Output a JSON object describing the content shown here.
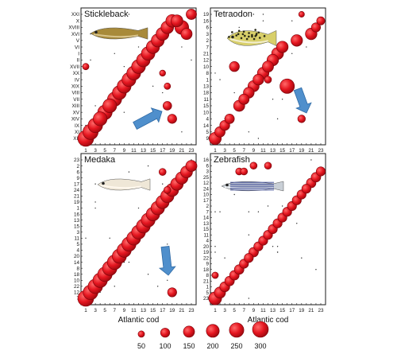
{
  "chart_data": [
    {
      "type": "scatter",
      "title": "Stickleback",
      "xlabel": "",
      "ylabel": "",
      "x_categories": [
        "1",
        "",
        "3",
        "",
        "5",
        "",
        "7",
        "",
        "9",
        "",
        "11",
        "",
        "13",
        "",
        "15",
        "",
        "17",
        "",
        "19",
        "",
        "21",
        "",
        "23"
      ],
      "y_categories_top_to_bottom": [
        "XXI",
        "X",
        "XVIII",
        "XVI",
        "V",
        "VI",
        "I",
        "II",
        "XVII",
        "XX",
        "IV",
        "XIX",
        "VIII",
        "VII",
        "XIII",
        "XV",
        "XIV",
        "IX",
        "XI",
        "XII"
      ],
      "bubbles": [
        {
          "x": 1,
          "y": "XII",
          "size": 300
        },
        {
          "x": 2,
          "y": "XI",
          "size": 280
        },
        {
          "x": 3,
          "y": "IX",
          "size": 250
        },
        {
          "x": 4,
          "y": "XIV",
          "size": 230
        },
        {
          "x": 5,
          "y": "XV",
          "size": 250
        },
        {
          "x": 6,
          "y": "XIII",
          "size": 230
        },
        {
          "x": 7,
          "y": "VII",
          "size": 240
        },
        {
          "x": 8,
          "y": "VIII",
          "size": 230
        },
        {
          "x": 9,
          "y": "XIX",
          "size": 230
        },
        {
          "x": 10,
          "y": "IV",
          "size": 230
        },
        {
          "x": 11,
          "y": "XX",
          "size": 230
        },
        {
          "x": 12,
          "y": "XVII",
          "size": 230
        },
        {
          "x": 13,
          "y": "II",
          "size": 220
        },
        {
          "x": 14,
          "y": "I",
          "size": 220
        },
        {
          "x": 15,
          "y": "VI",
          "size": 210
        },
        {
          "x": 16,
          "y": "V",
          "size": 200
        },
        {
          "x": 17,
          "y": "XVI",
          "size": 200
        },
        {
          "x": 18,
          "y": "XVIII",
          "size": 190
        },
        {
          "x": 19,
          "y": "X",
          "size": 190
        },
        {
          "x": 20,
          "y": "X",
          "size": 170
        },
        {
          "x": 21,
          "y": "XVIII",
          "size": 230
        },
        {
          "x": 22,
          "y": "XVI",
          "size": 150
        },
        {
          "x": 23,
          "y": "XXI",
          "size": 130
        },
        {
          "x": 1,
          "y": "XVII",
          "size": 50
        },
        {
          "x": 18,
          "y": "XIII",
          "size": 90
        },
        {
          "x": 19,
          "y": "XIV",
          "size": 100
        },
        {
          "x": 18,
          "y": "XIX",
          "size": 50
        },
        {
          "x": 17,
          "y": "XX",
          "size": 45
        }
      ]
    },
    {
      "type": "scatter",
      "title": "Tetraodon",
      "xlabel": "",
      "ylabel": "",
      "x_categories": [
        "1",
        "",
        "3",
        "",
        "5",
        "",
        "7",
        "",
        "9",
        "",
        "11",
        "",
        "13",
        "",
        "15",
        "",
        "17",
        "",
        "19",
        "",
        "21",
        "",
        "23"
      ],
      "y_categories_top_to_bottom": [
        "19",
        "16",
        "6",
        "3",
        "2",
        "7",
        "21",
        "12",
        "10",
        "8",
        "1",
        "13",
        "18",
        "11",
        "15",
        "10",
        "4",
        "14",
        "5",
        "9"
      ],
      "bubbles": [
        {
          "x": 1,
          "y": "9",
          "size": 180
        },
        {
          "x": 2,
          "y": "5",
          "size": 130
        },
        {
          "x": 3,
          "y": "14",
          "size": 120
        },
        {
          "x": 4,
          "y": "4",
          "size": 110
        },
        {
          "x": 5,
          "y": "10",
          "size": 120
        },
        {
          "x": 6,
          "y": "15",
          "size": 150
        },
        {
          "x": 7,
          "y": "11",
          "size": 130
        },
        {
          "x": 8,
          "y": "18",
          "size": 140
        },
        {
          "x": 9,
          "y": "13",
          "size": 150
        },
        {
          "x": 10,
          "y": "1",
          "size": 140
        },
        {
          "x": 11,
          "y": "8",
          "size": 160
        },
        {
          "x": 12,
          "y": "10",
          "size": 150
        },
        {
          "x": 13,
          "y": "12",
          "size": 160
        },
        {
          "x": 14,
          "y": "21",
          "size": 170
        },
        {
          "x": 15,
          "y": "7",
          "size": 160
        },
        {
          "x": 16,
          "y": "13",
          "size": 250
        },
        {
          "x": 18,
          "y": "2",
          "size": 160
        },
        {
          "x": 21,
          "y": "3",
          "size": 160
        },
        {
          "x": 22,
          "y": "6",
          "size": 100
        },
        {
          "x": 23,
          "y": "16",
          "size": 80
        },
        {
          "x": 19,
          "y": "4",
          "size": 70
        },
        {
          "x": 19,
          "y": "19",
          "size": 40
        },
        {
          "x": 12,
          "y": "1",
          "size": 60
        }
      ]
    },
    {
      "type": "scatter",
      "title": "Medaka",
      "xlabel": "Atlantic cod",
      "ylabel": "",
      "x_categories": [
        "1",
        "",
        "3",
        "",
        "5",
        "",
        "7",
        "",
        "9",
        "",
        "11",
        "",
        "13",
        "",
        "15",
        "",
        "17",
        "",
        "19",
        "",
        "21",
        "",
        "23"
      ],
      "y_categories_top_to_bottom": [
        "23",
        "2",
        "6",
        "9",
        "17",
        "24",
        "21",
        "19",
        "1",
        "16",
        "13",
        "15",
        "3",
        "11",
        "5",
        "4",
        "20",
        "14",
        "8",
        "18",
        "10",
        "22",
        "12",
        "7"
      ],
      "bubbles": [
        {
          "x": 1,
          "y": "7",
          "size": 300
        },
        {
          "x": 2,
          "y": "12",
          "size": 260
        },
        {
          "x": 3,
          "y": "22",
          "size": 250
        },
        {
          "x": 4,
          "y": "10",
          "size": 250
        },
        {
          "x": 5,
          "y": "18",
          "size": 250
        },
        {
          "x": 6,
          "y": "8",
          "size": 250
        },
        {
          "x": 7,
          "y": "14",
          "size": 250
        },
        {
          "x": 8,
          "y": "20",
          "size": 240
        },
        {
          "x": 9,
          "y": "4",
          "size": 240
        },
        {
          "x": 10,
          "y": "5",
          "size": 240
        },
        {
          "x": 11,
          "y": "11",
          "size": 230
        },
        {
          "x": 12,
          "y": "3",
          "size": 230
        },
        {
          "x": 13,
          "y": "15",
          "size": 230
        },
        {
          "x": 14,
          "y": "13",
          "size": 230
        },
        {
          "x": 15,
          "y": "16",
          "size": 220
        },
        {
          "x": 16,
          "y": "1",
          "size": 220
        },
        {
          "x": 17,
          "y": "19",
          "size": 210
        },
        {
          "x": 18,
          "y": "21",
          "size": 210
        },
        {
          "x": 19,
          "y": "24",
          "size": 200
        },
        {
          "x": 20,
          "y": "17",
          "size": 190
        },
        {
          "x": 21,
          "y": "9",
          "size": 180
        },
        {
          "x": 22,
          "y": "6",
          "size": 170
        },
        {
          "x": 23,
          "y": "2",
          "size": 150
        },
        {
          "x": 19,
          "y": "12",
          "size": 100
        },
        {
          "x": 18,
          "y": "24",
          "size": 60
        },
        {
          "x": 17,
          "y": "6",
          "size": 60
        }
      ]
    },
    {
      "type": "scatter",
      "title": "Zebrafish",
      "xlabel": "Atlantic cod",
      "ylabel": "",
      "x_categories": [
        "1",
        "",
        "3",
        "",
        "5",
        "",
        "7",
        "",
        "9",
        "",
        "11",
        "",
        "13",
        "",
        "15",
        "",
        "17",
        "",
        "19",
        "",
        "21",
        "",
        "23"
      ],
      "y_categories_top_to_bottom": [
        "16",
        "6",
        "3",
        "25",
        "12",
        "24",
        "10",
        "17",
        "2",
        "7",
        "14",
        "13",
        "15",
        "11",
        "4",
        "20",
        "19",
        "22",
        "9",
        "18",
        "8",
        "21",
        "1",
        "5",
        "23"
      ],
      "bubbles": [
        {
          "x": 1,
          "y": "23",
          "size": 200
        },
        {
          "x": 2,
          "y": "5",
          "size": 150
        },
        {
          "x": 3,
          "y": "1",
          "size": 120
        },
        {
          "x": 4,
          "y": "21",
          "size": 110
        },
        {
          "x": 5,
          "y": "8",
          "size": 110
        },
        {
          "x": 6,
          "y": "18",
          "size": 110
        },
        {
          "x": 7,
          "y": "9",
          "size": 100
        },
        {
          "x": 8,
          "y": "22",
          "size": 100
        },
        {
          "x": 9,
          "y": "19",
          "size": 110
        },
        {
          "x": 10,
          "y": "20",
          "size": 100
        },
        {
          "x": 11,
          "y": "4",
          "size": 100
        },
        {
          "x": 12,
          "y": "11",
          "size": 100
        },
        {
          "x": 13,
          "y": "15",
          "size": 100
        },
        {
          "x": 14,
          "y": "13",
          "size": 100
        },
        {
          "x": 15,
          "y": "14",
          "size": 100
        },
        {
          "x": 16,
          "y": "7",
          "size": 100
        },
        {
          "x": 17,
          "y": "2",
          "size": 100
        },
        {
          "x": 18,
          "y": "17",
          "size": 100
        },
        {
          "x": 19,
          "y": "10",
          "size": 100
        },
        {
          "x": 20,
          "y": "24",
          "size": 100
        },
        {
          "x": 21,
          "y": "12",
          "size": 110
        },
        {
          "x": 22,
          "y": "25",
          "size": 110
        },
        {
          "x": 23,
          "y": "3",
          "size": 100
        },
        {
          "x": 6,
          "y": "3",
          "size": 60
        },
        {
          "x": 7,
          "y": "3",
          "size": 60
        },
        {
          "x": 9,
          "y": "6",
          "size": 60
        },
        {
          "x": 12,
          "y": "6",
          "size": 60
        },
        {
          "x": 1,
          "y": "8",
          "size": 50
        }
      ]
    }
  ],
  "legend": {
    "title": "",
    "sizes": [
      50,
      100,
      150,
      200,
      250,
      300
    ],
    "labels": [
      "50",
      "100",
      "150",
      "200",
      "250",
      "300"
    ]
  },
  "colors": {
    "bubble_fill": "#e4151f",
    "bubble_stroke": "#7d0008",
    "arrow": "#4f8fcc",
    "frame": "#1a1a1a"
  }
}
